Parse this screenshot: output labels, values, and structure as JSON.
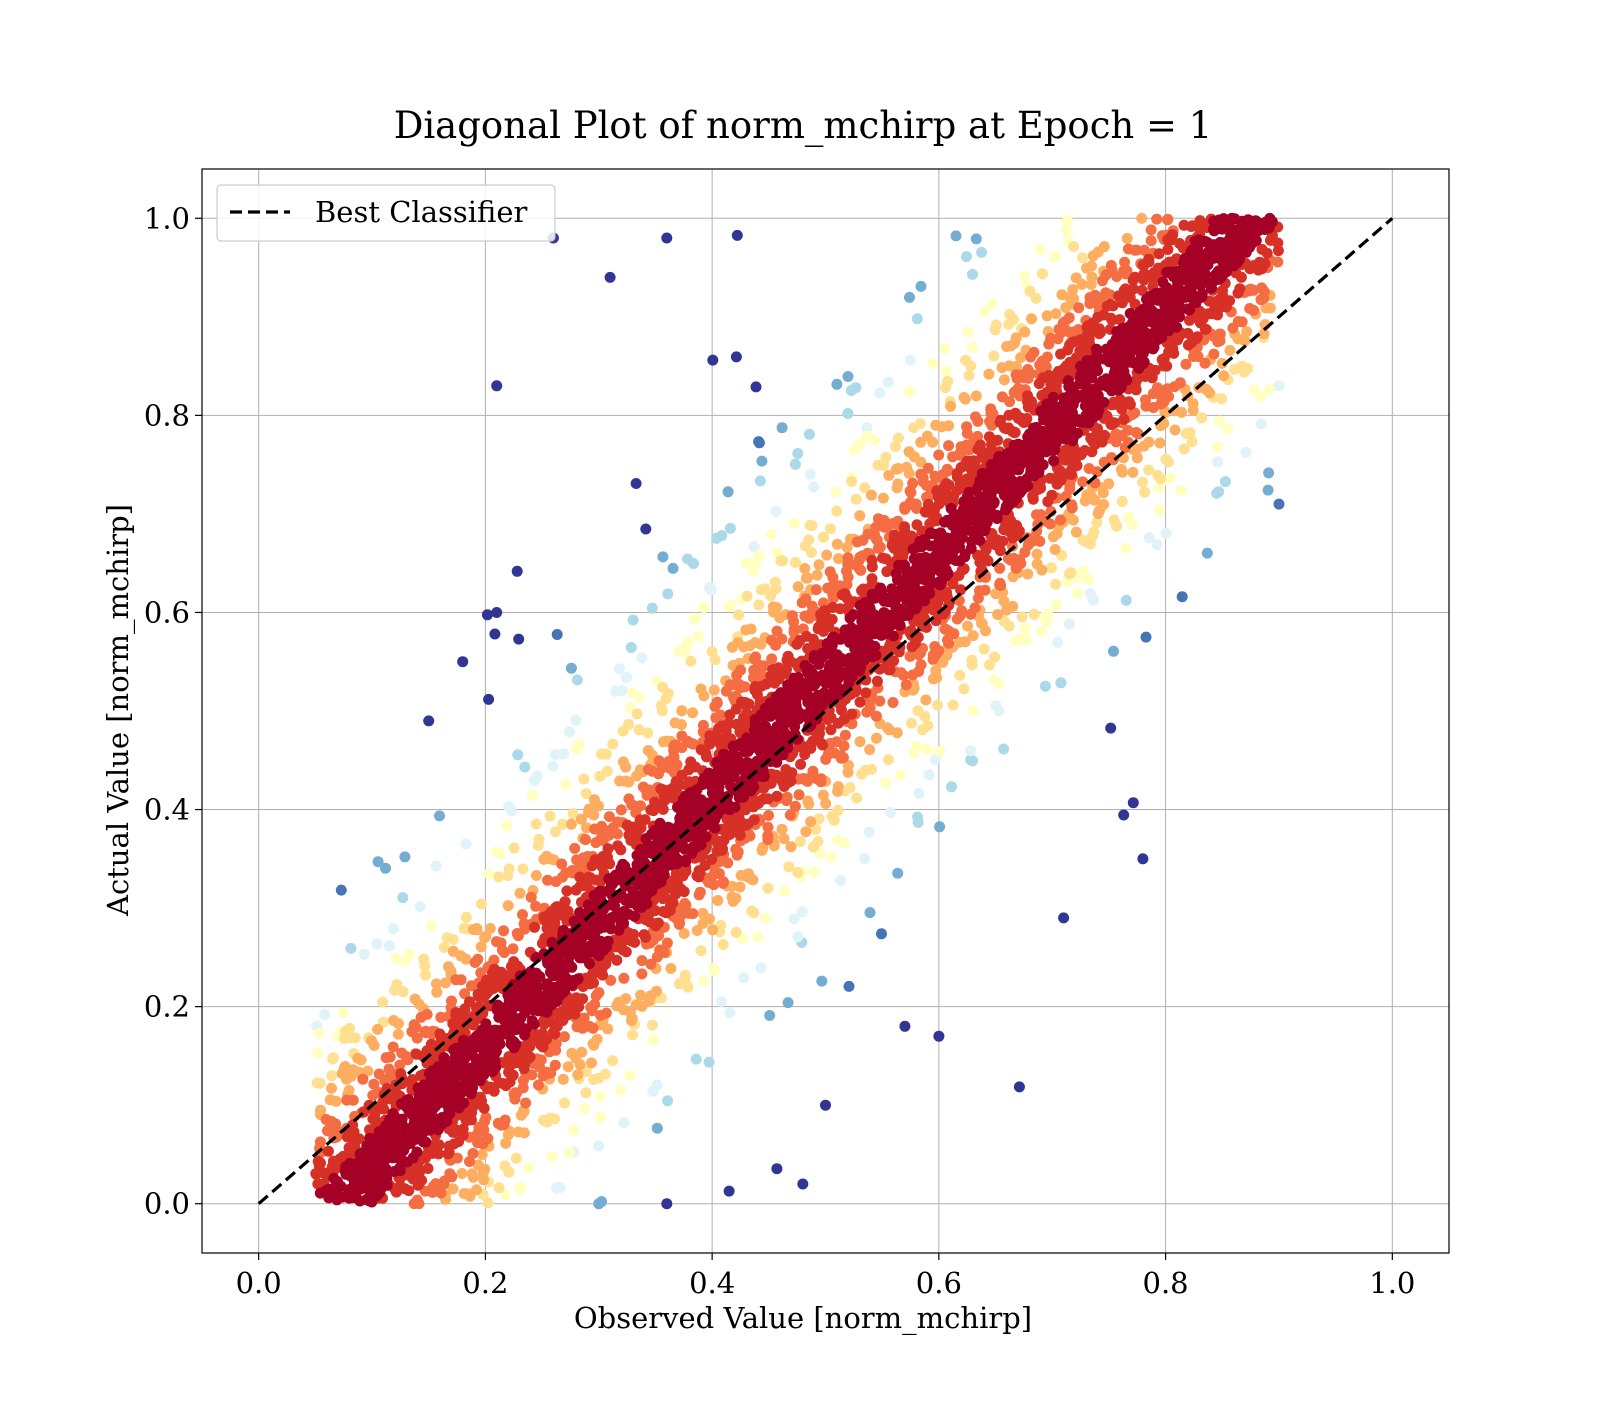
{
  "chart_data": {
    "type": "scatter",
    "title": "Diagonal Plot of norm_mchirp at Epoch = 1",
    "xlabel": "Observed Value [norm_mchirp]",
    "ylabel": "Actual Value [norm_mchirp]",
    "xlim": [
      -0.05,
      1.05
    ],
    "ylim": [
      -0.05,
      1.05
    ],
    "xticks": [
      0.0,
      0.2,
      0.4,
      0.6,
      0.8,
      1.0
    ],
    "yticks": [
      0.0,
      0.2,
      0.4,
      0.6,
      0.8,
      1.0
    ],
    "xtick_labels": [
      "0.0",
      "0.2",
      "0.4",
      "0.6",
      "0.8",
      "1.0"
    ],
    "ytick_labels": [
      "0.0",
      "0.2",
      "0.4",
      "0.6",
      "0.8",
      "1.0"
    ],
    "grid": true,
    "legend": {
      "placement": "upper-left",
      "entries": [
        {
          "label": "Best Classifier",
          "style": "dashed",
          "color": "#000000"
        }
      ]
    },
    "reference_line": {
      "name": "Best Classifier",
      "x": [
        0.0,
        1.0
      ],
      "y": [
        0.0,
        1.0
      ],
      "color": "#000000",
      "style": "dashed"
    },
    "colormap": "RdYlBu",
    "color_scale": [
      "#a50026",
      "#d73027",
      "#f46d43",
      "#fdae61",
      "#fee090",
      "#ffffbf",
      "#e0f3f8",
      "#abd9e9",
      "#74add1",
      "#4575b4",
      "#313695"
    ],
    "scatter_description": {
      "observed_range": [
        0.05,
        0.9
      ],
      "actual_range": [
        0.0,
        1.0
      ],
      "dense_core_color": "#a50026",
      "outlier_color": "#313695"
    },
    "sample_points": [
      {
        "x": 0.21,
        "y": 0.83
      },
      {
        "x": 0.31,
        "y": 0.94
      },
      {
        "x": 0.36,
        "y": 0.98
      },
      {
        "x": 0.26,
        "y": 0.98
      },
      {
        "x": 0.3,
        "y": 0.0
      },
      {
        "x": 0.36,
        "y": 0.0
      },
      {
        "x": 0.48,
        "y": 0.02
      },
      {
        "x": 0.6,
        "y": 0.17
      },
      {
        "x": 0.57,
        "y": 0.18
      },
      {
        "x": 0.71,
        "y": 0.29
      },
      {
        "x": 0.78,
        "y": 0.35
      },
      {
        "x": 0.9,
        "y": 0.71
      },
      {
        "x": 0.9,
        "y": 0.83
      },
      {
        "x": 0.89,
        "y": 0.95
      },
      {
        "x": 0.15,
        "y": 0.49
      },
      {
        "x": 0.18,
        "y": 0.55
      },
      {
        "x": 0.21,
        "y": 0.6
      },
      {
        "x": 0.5,
        "y": 0.1
      }
    ]
  }
}
